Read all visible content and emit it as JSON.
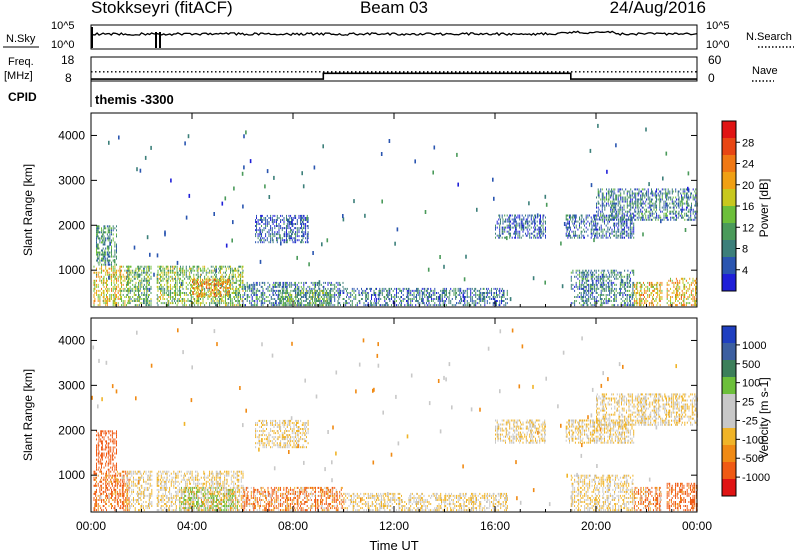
{
  "header": {
    "title": "Stokkseyri (fitACF)",
    "beam": "Beam 03",
    "date": "24/Aug/2016"
  },
  "strip": {
    "nsky_label": "N.Sky",
    "nsky_ticks": [
      "10^5",
      "10^0"
    ],
    "nsearch_label": "N.Search",
    "nsearch_ticks": [
      "10^5",
      "10^0"
    ],
    "freq_label": "Freq.",
    "freq_unit": "[MHz]",
    "freq_ticks": [
      "18",
      "8"
    ],
    "nave_label": "Nave",
    "nave_ticks": [
      "60",
      "0"
    ],
    "cpid_label": "CPID",
    "cpid_value": "themis -3300"
  },
  "colors": {
    "power_scale": [
      "#1f1fd8",
      "#2a55b0",
      "#3c7f7a",
      "#4a9a5a",
      "#6cbf3a",
      "#c8c81e",
      "#f0a014",
      "#f07814",
      "#e84614",
      "#e01414"
    ],
    "velocity_scale": [
      "#e01414",
      "#f05a14",
      "#f08a14",
      "#f0b428",
      "#c8c8c8",
      "#c8c8c8",
      "#6cbf3a",
      "#3c7f5a",
      "#3c5fa0",
      "#1f3fc0"
    ]
  },
  "chart_data": [
    {
      "type": "heatmap",
      "title": "",
      "xlabel": "",
      "ylabel": "Slant Range [km]",
      "xlim": [
        0,
        24
      ],
      "ylim": [
        180,
        4500
      ],
      "x_ticks": [
        "00:00",
        "04:00",
        "08:00",
        "12:00",
        "16:00",
        "20:00",
        "00:00"
      ],
      "y_ticks": [
        "1000",
        "2000",
        "3000",
        "4000"
      ],
      "colorbar_label": "Power [dB]",
      "colorbar_ticks": [
        "28",
        "24",
        "20",
        "16",
        "12",
        "8",
        "4"
      ],
      "clim": [
        0,
        32
      ],
      "regions": [
        {
          "t0": 0.1,
          "t1": 1.5,
          "r0": 200,
          "r1": 1100,
          "level": 18
        },
        {
          "t0": 0.2,
          "t1": 1.0,
          "r0": 1100,
          "r1": 2000,
          "level": 10
        },
        {
          "t0": 1.4,
          "t1": 2.4,
          "r0": 200,
          "r1": 1100,
          "level": 12
        },
        {
          "t0": 2.6,
          "t1": 6.0,
          "r0": 200,
          "r1": 1100,
          "level": 14
        },
        {
          "t0": 4.0,
          "t1": 5.5,
          "r0": 400,
          "r1": 800,
          "level": 22
        },
        {
          "t0": 6.0,
          "t1": 10.0,
          "r0": 200,
          "r1": 700,
          "level": 8
        },
        {
          "t0": 7.5,
          "t1": 9.5,
          "r0": 200,
          "r1": 550,
          "level": 12
        },
        {
          "t0": 6.5,
          "t1": 8.6,
          "r0": 1600,
          "r1": 2200,
          "level": 5
        },
        {
          "t0": 10.0,
          "t1": 16.5,
          "r0": 200,
          "r1": 600,
          "level": 7
        },
        {
          "t0": 16.0,
          "t1": 18.0,
          "r0": 1700,
          "r1": 2200,
          "level": 6
        },
        {
          "t0": 18.8,
          "t1": 21.5,
          "r0": 1700,
          "r1": 2200,
          "level": 6
        },
        {
          "t0": 20.0,
          "t1": 24.0,
          "r0": 2100,
          "r1": 2800,
          "level": 8
        },
        {
          "t0": 19.0,
          "t1": 21.5,
          "r0": 200,
          "r1": 1000,
          "level": 8
        },
        {
          "t0": 21.5,
          "t1": 22.6,
          "r0": 200,
          "r1": 700,
          "level": 20
        },
        {
          "t0": 22.8,
          "t1": 24.0,
          "r0": 200,
          "r1": 800,
          "level": 20
        }
      ]
    },
    {
      "type": "heatmap",
      "title": "",
      "xlabel": "Time UT",
      "ylabel": "Slant Range [km]",
      "xlim": [
        0,
        24
      ],
      "ylim": [
        180,
        4500
      ],
      "x_ticks": [
        "00:00",
        "04:00",
        "08:00",
        "12:00",
        "16:00",
        "20:00",
        "00:00"
      ],
      "y_ticks": [
        "1000",
        "2000",
        "3000",
        "4000"
      ],
      "colorbar_label": "Velocity [m s-1]",
      "colorbar_ticks": [
        "1000",
        "500",
        "100",
        "25",
        "-25",
        "-100",
        "-500",
        "-1000"
      ],
      "clim": [
        -1000,
        1000
      ],
      "regions": [
        {
          "t0": 0.1,
          "t1": 1.5,
          "r0": 200,
          "r1": 1100,
          "level": -150
        },
        {
          "t0": 0.2,
          "t1": 1.0,
          "r0": 1100,
          "r1": 2000,
          "level": -300
        },
        {
          "t0": 1.4,
          "t1": 2.4,
          "r0": 200,
          "r1": 1100,
          "level": 0
        },
        {
          "t0": 2.6,
          "t1": 6.0,
          "r0": 200,
          "r1": 1100,
          "level": 0
        },
        {
          "t0": 3.5,
          "t1": 5.8,
          "r0": 200,
          "r1": 700,
          "level": 80
        },
        {
          "t0": 6.0,
          "t1": 10.0,
          "r0": 200,
          "r1": 700,
          "level": -100
        },
        {
          "t0": 6.5,
          "t1": 8.6,
          "r0": 1600,
          "r1": 2200,
          "level": 0
        },
        {
          "t0": 10.0,
          "t1": 16.5,
          "r0": 200,
          "r1": 600,
          "level": 0
        },
        {
          "t0": 16.0,
          "t1": 18.0,
          "r0": 1700,
          "r1": 2200,
          "level": 0
        },
        {
          "t0": 18.8,
          "t1": 21.5,
          "r0": 1700,
          "r1": 2200,
          "level": 0
        },
        {
          "t0": 20.0,
          "t1": 24.0,
          "r0": 2100,
          "r1": 2800,
          "level": 0
        },
        {
          "t0": 19.0,
          "t1": 21.5,
          "r0": 200,
          "r1": 1000,
          "level": 0
        },
        {
          "t0": 21.5,
          "t1": 22.6,
          "r0": 200,
          "r1": 700,
          "level": -100
        },
        {
          "t0": 22.8,
          "t1": 24.0,
          "r0": 200,
          "r1": 800,
          "level": -200
        }
      ]
    },
    {
      "type": "line",
      "title": "",
      "xlabel": "",
      "ylabel": "Freq. [MHz]",
      "xlim": [
        0,
        24
      ],
      "ylim": [
        8,
        18
      ],
      "series": [
        {
          "x": [
            0,
            9.2,
            9.2,
            19.0,
            19.0,
            24
          ],
          "y": [
            8.8,
            8.8,
            11.2,
            11.2,
            8.8,
            8.8
          ]
        }
      ]
    },
    {
      "type": "line",
      "title": "",
      "xlabel": "",
      "ylabel": "Nave",
      "xlim": [
        0,
        24
      ],
      "ylim": [
        0,
        60
      ],
      "series": [
        {
          "x": [
            0,
            24
          ],
          "y": [
            23,
            23
          ]
        }
      ]
    }
  ]
}
